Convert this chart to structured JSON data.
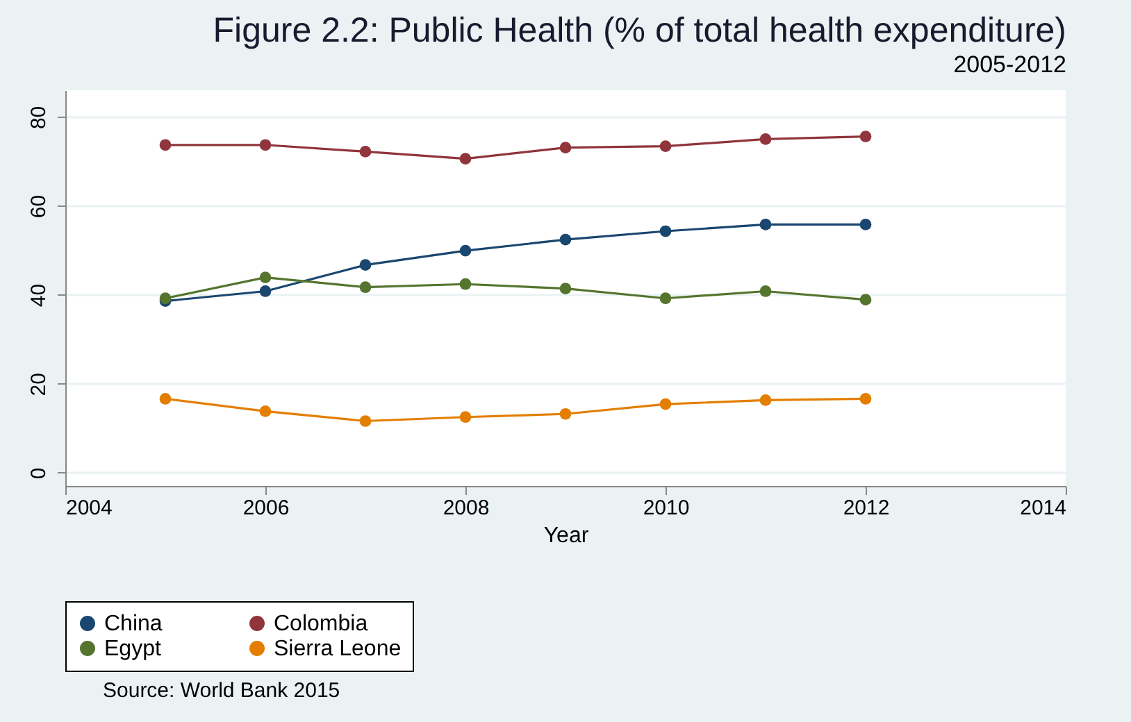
{
  "chart_data": {
    "type": "line",
    "title": "Figure 2.2: Public Health (% of total health expenditure)",
    "subtitle": "2005-2012",
    "xlabel": "Year",
    "x": [
      2005,
      2006,
      2007,
      2008,
      2009,
      2010,
      2011,
      2012
    ],
    "series": [
      {
        "name": "China",
        "color": "#1a476f",
        "values": [
          38.6,
          40.8,
          46.7,
          49.9,
          52.4,
          54.3,
          55.8,
          55.8
        ]
      },
      {
        "name": "Colombia",
        "color": "#90353b",
        "values": [
          73.7,
          73.7,
          72.2,
          70.6,
          73.1,
          73.4,
          75.0,
          75.6
        ]
      },
      {
        "name": "Egypt",
        "color": "#55752f",
        "values": [
          39.2,
          43.9,
          41.7,
          42.4,
          41.4,
          39.2,
          40.8,
          38.9
        ]
      },
      {
        "name": "Sierra Leone",
        "color": "#e37e00",
        "values": [
          16.6,
          13.8,
          11.6,
          12.5,
          13.2,
          15.4,
          16.3,
          16.6
        ]
      }
    ],
    "xlim": [
      2004,
      2014
    ],
    "xticks": [
      2004,
      2006,
      2008,
      2010,
      2012,
      2014
    ],
    "ylim": [
      -3,
      86
    ],
    "yticks": [
      0,
      20,
      40,
      60,
      80
    ],
    "grid": "y",
    "legend": "bottom",
    "marker": "circle",
    "line_style": "solid",
    "annotations": [
      "Source: World Bank 2015"
    ]
  }
}
